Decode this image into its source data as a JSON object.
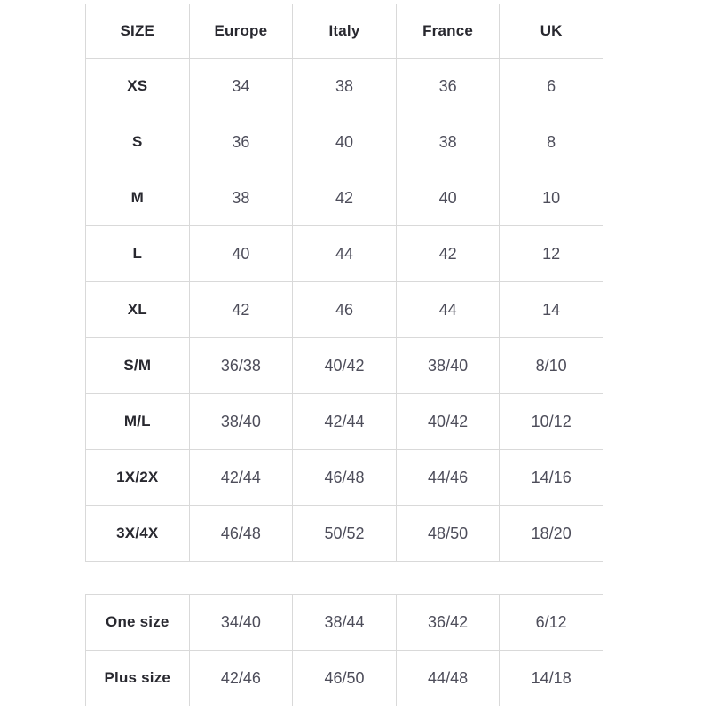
{
  "chart_data": {
    "type": "table",
    "tables": [
      {
        "columns": [
          "SIZE",
          "Europe",
          "Italy",
          "France",
          "UK"
        ],
        "rows": [
          [
            "XS",
            "34",
            "38",
            "36",
            "6"
          ],
          [
            "S",
            "36",
            "40",
            "38",
            "8"
          ],
          [
            "M",
            "38",
            "42",
            "40",
            "10"
          ],
          [
            "L",
            "40",
            "44",
            "42",
            "12"
          ],
          [
            "XL",
            "42",
            "46",
            "44",
            "14"
          ],
          [
            "S/M",
            "36/38",
            "40/42",
            "38/40",
            "8/10"
          ],
          [
            "M/L",
            "38/40",
            "42/44",
            "40/42",
            "10/12"
          ],
          [
            "1X/2X",
            "42/44",
            "46/48",
            "44/46",
            "14/16"
          ],
          [
            "3X/4X",
            "46/48",
            "50/52",
            "48/50",
            "18/20"
          ]
        ]
      },
      {
        "columns": null,
        "rows": [
          [
            "One size",
            "34/40",
            "38/44",
            "36/42",
            "6/12"
          ],
          [
            "Plus size",
            "42/46",
            "46/50",
            "44/48",
            "14/18"
          ]
        ]
      }
    ]
  },
  "table1": {
    "headers": [
      "SIZE",
      "Europe",
      "Italy",
      "France",
      "UK"
    ],
    "rows": [
      [
        "XS",
        "34",
        "38",
        "36",
        "6"
      ],
      [
        "S",
        "36",
        "40",
        "38",
        "8"
      ],
      [
        "M",
        "38",
        "42",
        "40",
        "10"
      ],
      [
        "L",
        "40",
        "44",
        "42",
        "12"
      ],
      [
        "XL",
        "42",
        "46",
        "44",
        "14"
      ],
      [
        "S/M",
        "36/38",
        "40/42",
        "38/40",
        "8/10"
      ],
      [
        "M/L",
        "38/40",
        "42/44",
        "40/42",
        "10/12"
      ],
      [
        "1X/2X",
        "42/44",
        "46/48",
        "44/46",
        "14/16"
      ],
      [
        "3X/4X",
        "46/48",
        "50/52",
        "48/50",
        "18/20"
      ]
    ]
  },
  "table2": {
    "rows": [
      [
        "One size",
        "34/40",
        "38/44",
        "36/42",
        "6/12"
      ],
      [
        "Plus size",
        "42/46",
        "46/50",
        "44/48",
        "14/18"
      ]
    ]
  },
  "colors": {
    "border": "#d9d9d9",
    "header_text": "#28282f",
    "data_text": "#4d4d5a",
    "background": "#ffffff"
  }
}
